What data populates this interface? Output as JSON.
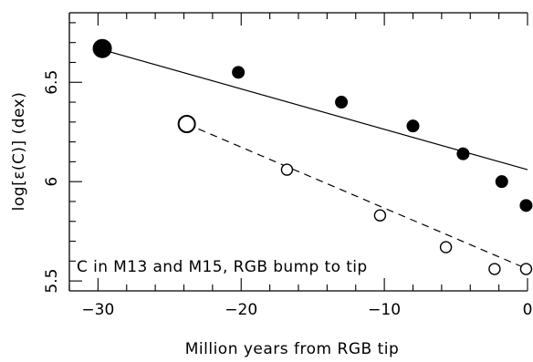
{
  "chart_data": {
    "type": "scatter",
    "xlabel": "Million years from RGB tip",
    "ylabel": "log[ε(C)] (dex)",
    "annotation": "C in M13 and M15, RGB bump to tip",
    "xlim": [
      -32,
      0
    ],
    "ylim": [
      5.45,
      6.85
    ],
    "x_ticks": [
      -30,
      -20,
      -10,
      0
    ],
    "x_tick_labels": [
      "−30",
      "−20",
      "−10",
      "0"
    ],
    "y_ticks": [
      5.5,
      6,
      6.5
    ],
    "y_tick_labels": [
      "5.5",
      "6",
      "6.5"
    ],
    "grid": false,
    "series": [
      {
        "marker": "filled-circle",
        "fit_line": "solid",
        "fit_endpoints": {
          "x": [
            -30,
            0
          ],
          "y": [
            6.67,
            6.06
          ]
        },
        "points": [
          {
            "x": -29.7,
            "y": 6.67,
            "size": "large"
          },
          {
            "x": -20.2,
            "y": 6.55
          },
          {
            "x": -13.0,
            "y": 6.4
          },
          {
            "x": -8.0,
            "y": 6.28
          },
          {
            "x": -4.5,
            "y": 6.14
          },
          {
            "x": -1.8,
            "y": 6.0
          },
          {
            "x": -0.1,
            "y": 5.88
          }
        ]
      },
      {
        "marker": "open-circle",
        "fit_line": "dashed",
        "fit_endpoints": {
          "x": [
            -23.8,
            0
          ],
          "y": [
            6.29,
            5.56
          ]
        },
        "points": [
          {
            "x": -23.8,
            "y": 6.29,
            "size": "large"
          },
          {
            "x": -16.8,
            "y": 6.06
          },
          {
            "x": -10.3,
            "y": 5.83
          },
          {
            "x": -5.7,
            "y": 5.67
          },
          {
            "x": -2.3,
            "y": 5.56
          },
          {
            "x": -0.1,
            "y": 5.56
          }
        ]
      }
    ]
  }
}
